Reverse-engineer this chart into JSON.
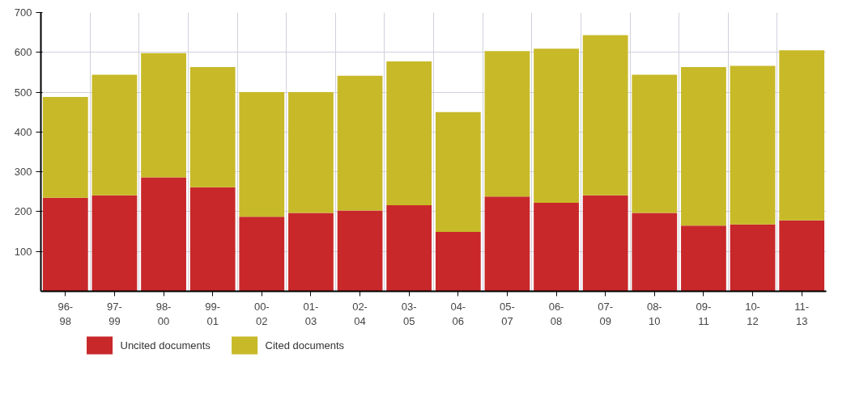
{
  "chart_data": {
    "type": "bar",
    "stacked": true,
    "categories": [
      "96-\n98",
      "97-\n99",
      "98-\n00",
      "99-\n01",
      "00-\n02",
      "01-\n03",
      "02-\n04",
      "03-\n05",
      "04-\n06",
      "05-\n07",
      "06-\n08",
      "07-\n09",
      "08-\n10",
      "09-\n11",
      "10-\n12",
      "11-\n13"
    ],
    "series": [
      {
        "name": "Uncited documents",
        "color": "#c8282a",
        "values": [
          235,
          241,
          286,
          261,
          187,
          197,
          203,
          216,
          149,
          238,
          222,
          241,
          197,
          165,
          168,
          178
        ]
      },
      {
        "name": "Cited documents",
        "color": "#c8b928",
        "values": [
          253,
          303,
          312,
          302,
          313,
          303,
          338,
          361,
          301,
          365,
          387,
          402,
          347,
          398,
          398,
          427
        ]
      }
    ],
    "ylim": [
      0,
      700
    ],
    "yticks": [
      100,
      200,
      300,
      400,
      500,
      600,
      700
    ],
    "grid": true,
    "legend": "bottom left"
  }
}
